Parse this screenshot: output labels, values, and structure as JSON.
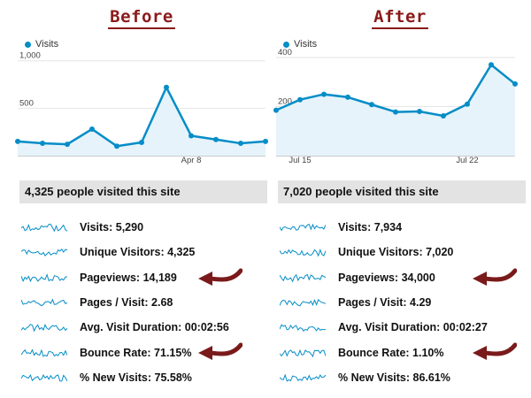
{
  "colors": {
    "line": "#058dc7",
    "fill": "#e6f3fa",
    "arrow": "#7a1a1a",
    "title": "#8b1a1a"
  },
  "panels": [
    {
      "title": "Before",
      "legend": "Visits",
      "summary": "4,325 people visited this site",
      "metrics": [
        {
          "label": "Visits: 5,290",
          "arrow": false
        },
        {
          "label": "Unique Visitors: 4,325",
          "arrow": false
        },
        {
          "label": "Pageviews: 14,189",
          "arrow": true
        },
        {
          "label": "Pages / Visit: 2.68",
          "arrow": false
        },
        {
          "label": "Avg. Visit Duration: 00:02:56",
          "arrow": false
        },
        {
          "label": "Bounce Rate: 71.15%",
          "arrow": true
        },
        {
          "label": "% New Visits: 75.58%",
          "arrow": false
        }
      ]
    },
    {
      "title": "After",
      "legend": "Visits",
      "summary": "7,020 people visited this site",
      "metrics": [
        {
          "label": "Visits: 7,934",
          "arrow": false
        },
        {
          "label": "Unique Visitors: 7,020",
          "arrow": false
        },
        {
          "label": "Pageviews: 34,000",
          "arrow": true
        },
        {
          "label": "Pages / Visit: 4.29",
          "arrow": false
        },
        {
          "label": "Avg. Visit Duration: 00:02:27",
          "arrow": false
        },
        {
          "label": "Bounce Rate: 1.10%",
          "arrow": true
        },
        {
          "label": "% New Visits: 86.61%",
          "arrow": false
        }
      ]
    }
  ],
  "chart_data": [
    {
      "type": "area",
      "series": [
        {
          "name": "Visits",
          "values": [
            150,
            130,
            120,
            280,
            100,
            140,
            720,
            210,
            170,
            130,
            150
          ]
        }
      ],
      "x_tick_labels": [
        {
          "index": 7,
          "label": "Apr 8"
        }
      ],
      "y_ticks": [
        500,
        1000
      ],
      "y_tick_labels": [
        "500",
        "1,000"
      ],
      "ylim": [
        0,
        1100
      ],
      "grid": true,
      "legend": "top-left"
    },
    {
      "type": "area",
      "series": [
        {
          "name": "Visits",
          "values": [
            185,
            228,
            250,
            238,
            208,
            178,
            180,
            162,
            210,
            370,
            292
          ]
        }
      ],
      "x_tick_labels": [
        {
          "index": 1,
          "label": "Jul 15"
        },
        {
          "index": 8,
          "label": "Jul 22"
        }
      ],
      "y_ticks": [
        200,
        400
      ],
      "y_tick_labels": [
        "200",
        "400"
      ],
      "ylim": [
        0,
        425
      ],
      "grid": true,
      "legend": "top-left"
    }
  ]
}
